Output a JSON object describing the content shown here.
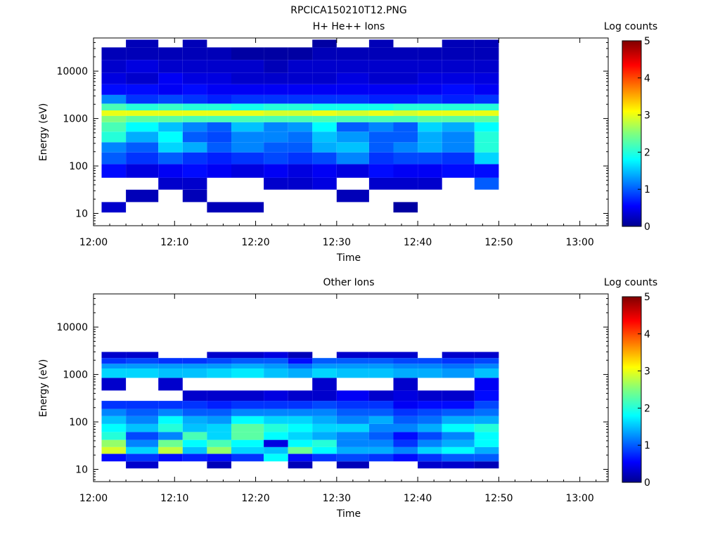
{
  "figure_title": "RPCICA150210T12.PNG",
  "chart_data": [
    {
      "type": "heatmap",
      "title": "H+ He++ Ions",
      "xlabel": "Time",
      "ylabel": "Energy (eV)",
      "x_ticks": [
        "12:00",
        "12:10",
        "12:20",
        "12:30",
        "12:40",
        "12:50",
        "13:00"
      ],
      "y_ticks": [
        "10",
        "100",
        "1000",
        "10000"
      ],
      "y_scale": "log",
      "colorbar": {
        "label": "Log counts",
        "ticks": [
          "0",
          "1",
          "2",
          "3",
          "4",
          "5"
        ],
        "range": [
          0,
          5
        ]
      },
      "time_bins": [
        "12:01-12:04",
        "12:04-12:08",
        "12:08-12:11",
        "12:11-12:14",
        "12:14-12:17",
        "12:17-12:21",
        "12:21-12:24",
        "12:24-12:27",
        "12:27-12:30",
        "12:30-12:34",
        "12:34-12:37",
        "12:37-12:40",
        "12:40-12:43",
        "12:43-12:47",
        "12:47-12:50"
      ],
      "energy_bands_eV": [
        12,
        25,
        40,
        80,
        150,
        250,
        400,
        700,
        1000,
        1300,
        1700,
        2500,
        4000,
        7000,
        12000,
        25000,
        40000
      ],
      "log_counts": [
        [
          0.3,
          0,
          0,
          0.6,
          1.0,
          1.2,
          2.0,
          2.2,
          2.5,
          3.0,
          2.2,
          1.2,
          0.6,
          0.4,
          0.3,
          0.2,
          0
        ],
        [
          0,
          0.2,
          0,
          0.4,
          0.8,
          1.0,
          1.4,
          1.8,
          2.3,
          3.0,
          2.0,
          0.8,
          0.6,
          0.3,
          0.4,
          0.2,
          0.2
        ],
        [
          0,
          0,
          0.3,
          0.5,
          1.0,
          1.6,
          1.8,
          1.5,
          2.3,
          3.0,
          2.1,
          0.9,
          0.5,
          0.5,
          0.3,
          0.2,
          0
        ],
        [
          0,
          0.2,
          0.3,
          0.6,
          0.8,
          1.4,
          1.0,
          1.2,
          2.2,
          3.0,
          2.0,
          0.8,
          0.6,
          0.4,
          0.3,
          0.2,
          0.2
        ],
        [
          0.2,
          0,
          0,
          0.5,
          0.7,
          1.0,
          0.9,
          1.0,
          2.2,
          3.0,
          2.0,
          0.7,
          0.5,
          0.4,
          0.3,
          0.2,
          0
        ],
        [
          0.2,
          0,
          0,
          0.4,
          0.8,
          1.2,
          1.2,
          1.5,
          2.2,
          3.0,
          1.9,
          0.8,
          0.5,
          0.3,
          0.3,
          0.1,
          0
        ],
        [
          0,
          0,
          0.3,
          0.5,
          0.9,
          1.0,
          1.2,
          1.2,
          2.2,
          2.9,
          2.0,
          0.8,
          0.5,
          0.3,
          0.2,
          0.1,
          0
        ],
        [
          0,
          0,
          0.3,
          0.4,
          0.8,
          1.0,
          1.1,
          1.3,
          2.2,
          2.9,
          2.0,
          0.8,
          0.5,
          0.3,
          0.3,
          0.1,
          0
        ],
        [
          0,
          0,
          0.4,
          0.5,
          0.9,
          1.4,
          1.5,
          1.8,
          2.2,
          3.0,
          1.9,
          0.8,
          0.5,
          0.3,
          0.3,
          0.2,
          0.1
        ],
        [
          0,
          0.2,
          0,
          0.4,
          1.2,
          1.5,
          1.3,
          1.0,
          2.2,
          2.9,
          1.9,
          0.8,
          0.5,
          0.4,
          0.3,
          0.2,
          0
        ],
        [
          0,
          0,
          0.3,
          0.6,
          0.8,
          1.0,
          1.0,
          1.2,
          2.2,
          3.0,
          1.9,
          0.7,
          0.5,
          0.3,
          0.3,
          0.2,
          0.2
        ],
        [
          0.1,
          0,
          0.3,
          0.5,
          0.9,
          1.2,
          1.0,
          1.0,
          2.2,
          2.9,
          2.0,
          0.7,
          0.5,
          0.3,
          0.3,
          0.2,
          0
        ],
        [
          0,
          0,
          0.3,
          0.5,
          0.9,
          1.4,
          1.4,
          1.6,
          2.3,
          3.0,
          2.0,
          0.8,
          0.5,
          0.4,
          0.3,
          0.2,
          0
        ],
        [
          0,
          0,
          0,
          0.6,
          0.8,
          1.2,
          1.2,
          1.4,
          2.3,
          3.0,
          2.0,
          0.7,
          0.6,
          0.4,
          0.3,
          0.2,
          0.2
        ],
        [
          0,
          0,
          1.0,
          0.6,
          1.6,
          2.0,
          2.0,
          1.8,
          2.3,
          3.0,
          2.0,
          0.8,
          0.5,
          0.4,
          0.3,
          0.2,
          0.2
        ]
      ]
    },
    {
      "type": "heatmap",
      "title": "Other Ions",
      "xlabel": "Time",
      "ylabel": "Energy (eV)",
      "x_ticks": [
        "12:00",
        "12:10",
        "12:20",
        "12:30",
        "12:40",
        "12:50",
        "13:00"
      ],
      "y_ticks": [
        "10",
        "100",
        "1000",
        "10000"
      ],
      "y_scale": "log",
      "colorbar": {
        "label": "Log counts",
        "ticks": [
          "0",
          "1",
          "2",
          "3",
          "4",
          "5"
        ],
        "range": [
          0,
          5
        ]
      },
      "time_bins": [
        "12:01-12:04",
        "12:04-12:08",
        "12:08-12:11",
        "12:11-12:14",
        "12:14-12:17",
        "12:17-12:21",
        "12:21-12:24",
        "12:24-12:27",
        "12:27-12:30",
        "12:30-12:34",
        "12:34-12:37",
        "12:37-12:40",
        "12:40-12:43",
        "12:43-12:47",
        "12:47-12:50"
      ],
      "energy_bands_eV": [
        12,
        18,
        25,
        35,
        50,
        75,
        110,
        160,
        220,
        350,
        600,
        1200,
        1500,
        1900,
        2600
      ],
      "log_counts": [
        [
          0,
          0.6,
          2.9,
          2.6,
          2.0,
          1.8,
          1.5,
          1.2,
          0.8,
          0,
          0.3,
          1.6,
          1.3,
          0.8,
          0.3
        ],
        [
          0.3,
          0.8,
          1.6,
          1.2,
          0.9,
          1.5,
          1.2,
          1.0,
          0.8,
          0,
          0,
          1.6,
          1.3,
          0.9,
          0.3
        ],
        [
          0,
          0.6,
          2.8,
          2.4,
          1.2,
          2.0,
          1.8,
          1.2,
          0.8,
          0,
          0.3,
          1.5,
          1.3,
          0.8,
          0
        ],
        [
          0,
          0.7,
          1.5,
          1.8,
          2.2,
          1.5,
          1.4,
          1.0,
          0.8,
          0.3,
          0,
          1.5,
          1.3,
          0.8,
          0
        ],
        [
          0.2,
          0.6,
          2.6,
          2.2,
          1.6,
          1.6,
          1.3,
          1.0,
          0.7,
          0.3,
          0,
          1.6,
          1.3,
          0.9,
          0.3
        ],
        [
          0,
          0.8,
          1.6,
          1.8,
          2.3,
          2.3,
          1.8,
          1.2,
          0.8,
          0.3,
          0,
          1.7,
          1.4,
          1.0,
          0.3
        ],
        [
          0,
          1.8,
          1.5,
          0.4,
          1.8,
          2.0,
          1.6,
          1.2,
          0.8,
          0.4,
          0,
          1.5,
          1.3,
          1.0,
          0.4
        ],
        [
          0.2,
          0.6,
          2.4,
          1.8,
          1.6,
          1.8,
          1.6,
          1.2,
          0.8,
          0.3,
          0,
          1.4,
          1.1,
          0.6,
          0.2
        ],
        [
          0,
          0.8,
          1.8,
          2.0,
          1.4,
          1.6,
          1.4,
          1.2,
          0.9,
          0.3,
          0.3,
          1.6,
          1.3,
          1.0,
          0
        ],
        [
          0.2,
          0.9,
          1.4,
          1.2,
          1.2,
          1.6,
          1.2,
          1.0,
          0.8,
          0.5,
          0,
          1.5,
          1.3,
          1.0,
          0.3
        ],
        [
          0,
          0.8,
          1.4,
          1.2,
          1.0,
          1.2,
          1.4,
          1.0,
          0.8,
          0.3,
          0,
          1.5,
          1.3,
          1.0,
          0.3
        ],
        [
          0,
          0.6,
          1.2,
          0.8,
          0.6,
          1.2,
          1.0,
          0.8,
          0.5,
          0.4,
          0.3,
          1.4,
          1.2,
          0.9,
          0.3
        ],
        [
          0.3,
          0.8,
          1.6,
          1.2,
          0.9,
          1.4,
          1.1,
          0.9,
          0.6,
          0.3,
          0,
          1.4,
          1.2,
          0.9,
          0
        ],
        [
          0.3,
          1.0,
          1.8,
          1.4,
          1.2,
          1.8,
          1.4,
          1.0,
          0.6,
          0.3,
          0,
          1.3,
          1.1,
          0.8,
          0.3
        ],
        [
          0.2,
          1.0,
          1.4,
          1.8,
          1.8,
          2.0,
          1.4,
          1.1,
          0.9,
          0.6,
          0.5,
          1.5,
          1.2,
          0.9,
          0.3
        ]
      ]
    }
  ]
}
